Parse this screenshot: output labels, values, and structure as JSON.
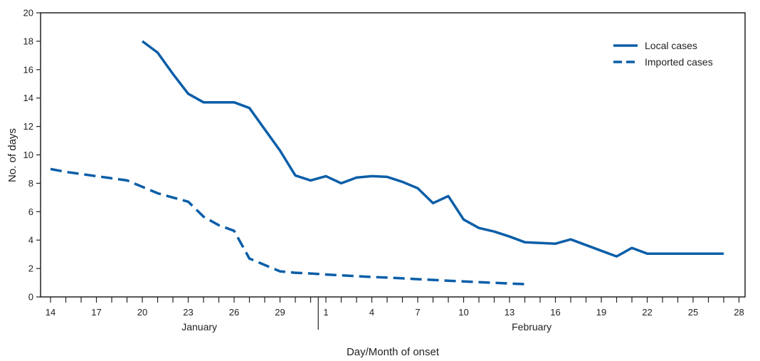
{
  "chart_data": {
    "type": "line",
    "xlabel": "Day/Month of onset",
    "ylabel": "No. of days",
    "ylim": [
      0,
      20
    ],
    "yticks": [
      0,
      2,
      4,
      6,
      8,
      10,
      12,
      14,
      16,
      18,
      20
    ],
    "x_tick_labels": [
      "14",
      "17",
      "20",
      "23",
      "26",
      "29",
      "1",
      "4",
      "7",
      "10",
      "13",
      "16",
      "19",
      "22",
      "25",
      "28"
    ],
    "months": [
      "January",
      "February"
    ],
    "legend_position": "top-right",
    "grid": false,
    "colors": {
      "series": "#0a5ea8",
      "axis": "#222222"
    },
    "series": [
      {
        "name": "Local cases",
        "style": "solid",
        "x": [
          "2020-01-20",
          "2020-01-21",
          "2020-01-22",
          "2020-01-23",
          "2020-01-24",
          "2020-01-25",
          "2020-01-26",
          "2020-01-27",
          "2020-01-28",
          "2020-01-29",
          "2020-01-30",
          "2020-01-31",
          "2020-02-01",
          "2020-02-02",
          "2020-02-03",
          "2020-02-04",
          "2020-02-05",
          "2020-02-06",
          "2020-02-07",
          "2020-02-08",
          "2020-02-09",
          "2020-02-10",
          "2020-02-11",
          "2020-02-12",
          "2020-02-13",
          "2020-02-14",
          "2020-02-15",
          "2020-02-16",
          "2020-02-17",
          "2020-02-18",
          "2020-02-19",
          "2020-02-20",
          "2020-02-21",
          "2020-02-22",
          "2020-02-23",
          "2020-02-24",
          "2020-02-25",
          "2020-02-26",
          "2020-02-27"
        ],
        "values": [
          18,
          17.2,
          15.7,
          14.3,
          13.7,
          13.7,
          13.7,
          13.3,
          11.8,
          10.3,
          8.55,
          8.2,
          8.5,
          8.0,
          8.4,
          8.5,
          8.45,
          8.1,
          7.65,
          6.6,
          7.1,
          5.45,
          4.85,
          4.6,
          4.25,
          3.85,
          3.8,
          3.75,
          4.05,
          3.65,
          3.25,
          2.85,
          3.45,
          3.05,
          3.05,
          3.05,
          3.05,
          3.05,
          3.05
        ]
      },
      {
        "name": "Imported cases",
        "style": "dashed",
        "x": [
          "2020-01-14",
          "2020-01-15",
          "2020-01-16",
          "2020-01-17",
          "2020-01-18",
          "2020-01-19",
          "2020-01-20",
          "2020-01-21",
          "2020-01-22",
          "2020-01-23",
          "2020-01-24",
          "2020-01-25",
          "2020-01-26",
          "2020-01-27",
          "2020-01-28",
          "2020-01-29",
          "2020-01-30",
          "2020-01-31",
          "2020-02-01",
          "2020-02-02",
          "2020-02-03",
          "2020-02-04",
          "2020-02-05",
          "2020-02-06",
          "2020-02-07",
          "2020-02-08",
          "2020-02-09",
          "2020-02-10",
          "2020-02-11",
          "2020-02-12",
          "2020-02-13",
          "2020-02-14"
        ],
        "values": [
          9.0,
          8.8,
          8.65,
          8.5,
          8.35,
          8.2,
          7.75,
          7.3,
          7.0,
          6.7,
          5.65,
          5.05,
          4.65,
          2.7,
          2.25,
          1.8,
          1.7,
          1.65,
          1.58,
          1.52,
          1.46,
          1.41,
          1.36,
          1.31,
          1.25,
          1.2,
          1.14,
          1.09,
          1.04,
          0.99,
          0.94,
          0.9
        ]
      }
    ]
  }
}
